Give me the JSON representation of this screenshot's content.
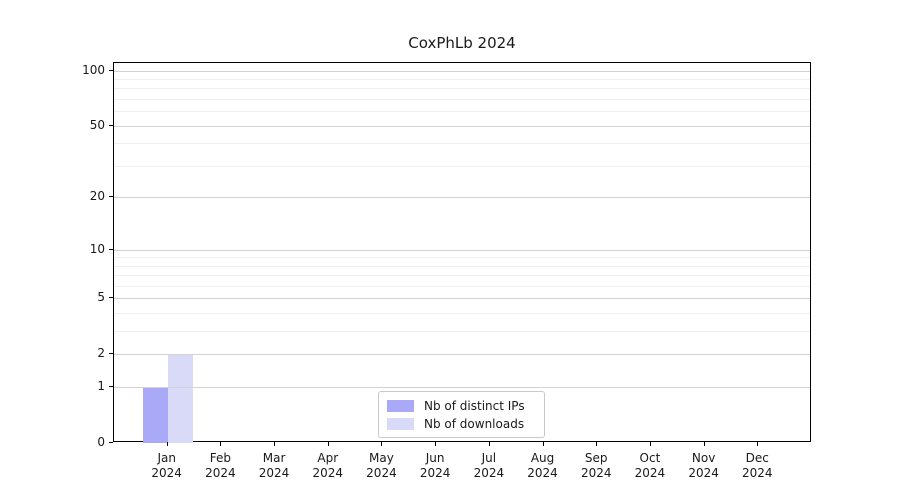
{
  "title": "CoxPhLb 2024",
  "chart_data": {
    "type": "bar",
    "title": "CoxPhLb 2024",
    "categories": [
      "Jan",
      "Feb",
      "Mar",
      "Apr",
      "May",
      "Jun",
      "Jul",
      "Aug",
      "Sep",
      "Oct",
      "Nov",
      "Dec"
    ],
    "category_year": "2024",
    "series": [
      {
        "name": "Nb of distinct IPs",
        "color": "#a9a9f7",
        "values": [
          1,
          0,
          0,
          0,
          0,
          0,
          0,
          0,
          0,
          0,
          0,
          0
        ]
      },
      {
        "name": "Nb of downloads",
        "color": "#d9d9f8",
        "values": [
          2,
          0,
          0,
          0,
          0,
          0,
          0,
          0,
          0,
          0,
          0,
          0
        ]
      }
    ],
    "yscale": "log1p",
    "ylim": [
      0,
      110
    ],
    "ymajor_ticks": [
      100,
      50,
      20,
      10,
      5,
      2,
      1,
      0
    ],
    "yminor_gridlines": [
      3,
      4,
      6,
      7,
      8,
      9,
      30,
      40,
      60,
      70,
      80,
      90
    ],
    "grid": "horizontal",
    "legend_position": "lower-center",
    "colors": {
      "axis": "#000000",
      "grid_major": "#d2d2d2",
      "grid_minor": "#efefef",
      "text": "#1a1a1a",
      "legend_border": "#c9c9c9",
      "background": "#ffffff"
    }
  }
}
